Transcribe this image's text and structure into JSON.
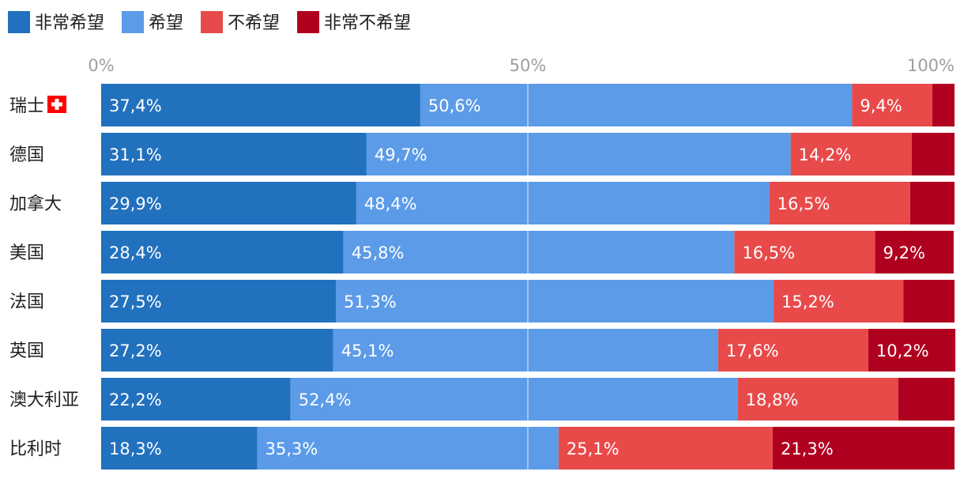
{
  "chart_data": {
    "type": "bar",
    "orientation": "horizontal",
    "stacked": true,
    "title": "",
    "xlabel": "",
    "ylabel": "",
    "xlim": [
      0,
      100
    ],
    "x_ticks": [
      "0%",
      "50%",
      "100%"
    ],
    "legend_position": "top-left",
    "categories": [
      "瑞士",
      "德国",
      "加拿大",
      "美国",
      "法国",
      "英国",
      "澳大利亚",
      "比利时"
    ],
    "category_icons": [
      "swiss-flag-icon",
      null,
      null,
      null,
      null,
      null,
      null,
      null
    ],
    "series": [
      {
        "name": "非常希望",
        "color": "#2171be",
        "values": [
          37.4,
          31.1,
          29.9,
          28.4,
          27.5,
          27.2,
          22.2,
          18.3
        ],
        "labels": [
          "37,4%",
          "31,1%",
          "29,9%",
          "28,4%",
          "27,5%",
          "27,2%",
          "22,2%",
          "18,3%"
        ]
      },
      {
        "name": "希望",
        "color": "#5b9be8",
        "values": [
          50.6,
          49.7,
          48.4,
          45.8,
          51.3,
          45.1,
          52.4,
          35.3
        ],
        "labels": [
          "50,6%",
          "49,7%",
          "48,4%",
          "45,8%",
          "51,3%",
          "45,1%",
          "52,4%",
          "35,3%"
        ]
      },
      {
        "name": "不希望",
        "color": "#e84a4a",
        "values": [
          9.4,
          14.2,
          16.5,
          16.5,
          15.2,
          17.6,
          18.8,
          25.1
        ],
        "labels": [
          "9,4%",
          "14,2%",
          "16,5%",
          "16,5%",
          "15,2%",
          "17,6%",
          "18,8%",
          "25,1%"
        ]
      },
      {
        "name": "非常不希望",
        "color": "#b00020",
        "values": [
          2.6,
          5.0,
          5.2,
          9.2,
          6.0,
          10.2,
          6.6,
          21.3
        ],
        "labels": [
          "",
          "",
          "",
          "9,2%",
          "",
          "10,2%",
          "",
          "21,3%"
        ]
      }
    ]
  }
}
